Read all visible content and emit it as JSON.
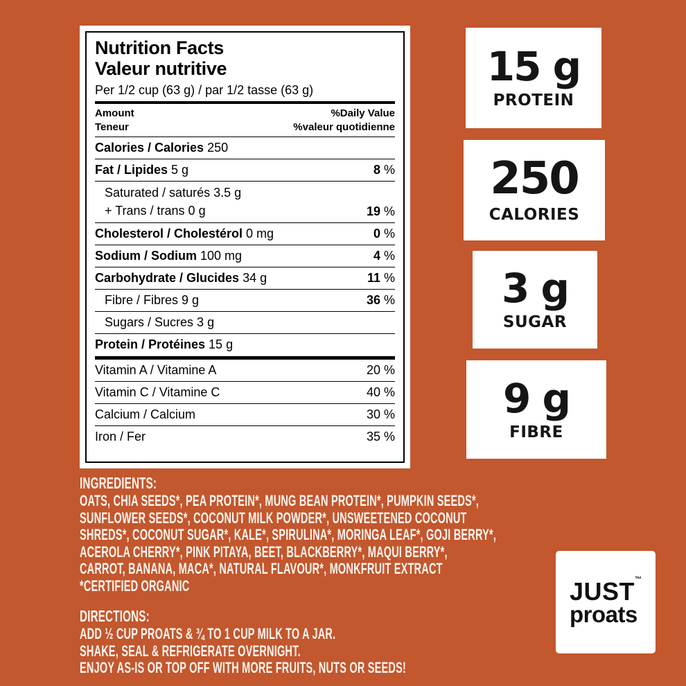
{
  "colors": {
    "background": "#C3572E",
    "card": "#FFFFFF",
    "label_text": "#000000",
    "badge_text": "#151515",
    "light_text": "#FBF5EF"
  },
  "nutrition": {
    "title_en": "Nutrition Facts",
    "title_fr": "Valeur nutritive",
    "serving": "Per 1/2 cup (63 g) / par 1/2 tasse (63 g)",
    "col_amount_en": "Amount",
    "col_amount_fr": "Teneur",
    "col_dv_en": "%Daily Value",
    "col_dv_fr": "%valeur quotidienne",
    "calories": {
      "bold": "Calories / Calories",
      "rest": " 250"
    },
    "fat": {
      "bold": "Fat / Lipides",
      "rest": " 5 g",
      "pb": "8",
      "pr": " %"
    },
    "sat": {
      "line1": "Saturated / saturés 3.5 g",
      "line2": "+ Trans / trans 0 g",
      "pb": "19",
      "pr": " %"
    },
    "chol": {
      "bold": "Cholesterol / Cholestérol",
      "rest": " 0 mg",
      "pb": "0",
      "pr": " %"
    },
    "sodium": {
      "bold": "Sodium / Sodium",
      "rest": " 100 mg",
      "pb": "4",
      "pr": " %"
    },
    "carb": {
      "bold": "Carbohydrate / Glucides",
      "rest": " 34 g",
      "pb": "11",
      "pr": " %"
    },
    "fibre": {
      "plain": "Fibre / Fibres 9 g",
      "pb": "36",
      "pr": " %"
    },
    "sugars": {
      "plain": "Sugars / Sucres 3 g"
    },
    "protein": {
      "bold": "Protein / Protéines",
      "rest": " 15 g"
    },
    "vitamins": [
      {
        "label": "Vitamin A / Vitamine A",
        "pct": "20 %"
      },
      {
        "label": "Vitamin C / Vitamine C",
        "pct": "40 %"
      },
      {
        "label": "Calcium / Calcium",
        "pct": "30 %"
      },
      {
        "label": "Iron / Fer",
        "pct": "35 %"
      }
    ]
  },
  "badges": [
    {
      "value": "15 g",
      "label": "PROTEIN"
    },
    {
      "value": "250",
      "label": "CALORIES"
    },
    {
      "value": "3 g",
      "label": "SUGAR"
    },
    {
      "value": "9 g",
      "label": "FIBRE"
    }
  ],
  "ingredients": {
    "heading": "INGREDIENTS:",
    "lines": [
      "OATS, CHIA SEEDS*, PEA PROTEIN*, MUNG BEAN PROTEIN*, PUMPKIN SEEDS*,",
      "SUNFLOWER SEEDS*, COCONUT MILK POWDER*, UNSWEETENED COCONUT",
      "SHREDS*, COCONUT SUGAR*, KALE*, SPIRULINA*, MORINGA LEAF*, GOJI BERRY*,",
      "ACEROLA CHERRY*, PINK PITAYA, BEET, BLACKBERRY*, MAQUI BERRY*,",
      "CARROT, BANANA, MACA*, NATURAL FLAVOUR*, MONKFRUIT EXTRACT",
      "*CERTIFIED ORGANIC"
    ]
  },
  "directions": {
    "heading": "DIRECTIONS:",
    "lines": [
      "ADD ½ CUP PROATS & ¾ TO 1 CUP MILK TO A JAR.",
      "SHAKE, SEAL & REFRIGERATE OVERNIGHT.",
      "ENJOY AS-IS OR TOP OFF WITH MORE FRUITS, NUTS OR SEEDS!"
    ]
  },
  "logo": {
    "word1": "JUST",
    "tm": "™",
    "word2": "proats"
  }
}
